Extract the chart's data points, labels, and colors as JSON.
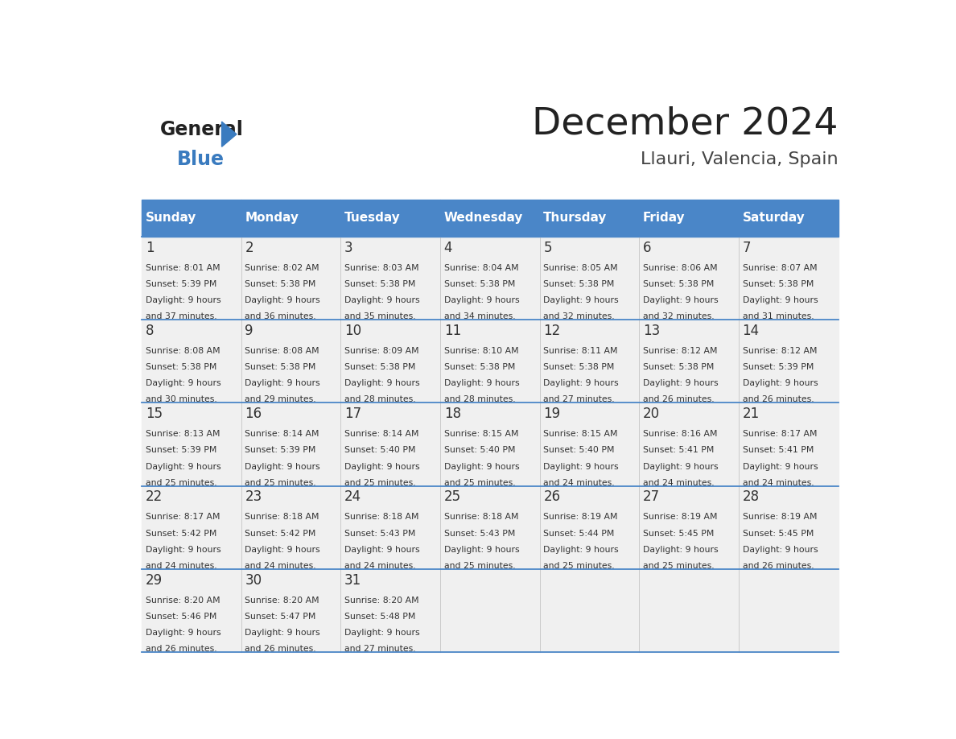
{
  "title": "December 2024",
  "subtitle": "Llauri, Valencia, Spain",
  "header_color": "#4a86c8",
  "header_text_color": "#ffffff",
  "days_of_week": [
    "Sunday",
    "Monday",
    "Tuesday",
    "Wednesday",
    "Thursday",
    "Friday",
    "Saturday"
  ],
  "weeks": [
    [
      {
        "day": 1,
        "sunrise": "8:01 AM",
        "sunset": "5:39 PM",
        "daylight_hours": 9,
        "daylight_minutes": 37
      },
      {
        "day": 2,
        "sunrise": "8:02 AM",
        "sunset": "5:38 PM",
        "daylight_hours": 9,
        "daylight_minutes": 36
      },
      {
        "day": 3,
        "sunrise": "8:03 AM",
        "sunset": "5:38 PM",
        "daylight_hours": 9,
        "daylight_minutes": 35
      },
      {
        "day": 4,
        "sunrise": "8:04 AM",
        "sunset": "5:38 PM",
        "daylight_hours": 9,
        "daylight_minutes": 34
      },
      {
        "day": 5,
        "sunrise": "8:05 AM",
        "sunset": "5:38 PM",
        "daylight_hours": 9,
        "daylight_minutes": 32
      },
      {
        "day": 6,
        "sunrise": "8:06 AM",
        "sunset": "5:38 PM",
        "daylight_hours": 9,
        "daylight_minutes": 32
      },
      {
        "day": 7,
        "sunrise": "8:07 AM",
        "sunset": "5:38 PM",
        "daylight_hours": 9,
        "daylight_minutes": 31
      }
    ],
    [
      {
        "day": 8,
        "sunrise": "8:08 AM",
        "sunset": "5:38 PM",
        "daylight_hours": 9,
        "daylight_minutes": 30
      },
      {
        "day": 9,
        "sunrise": "8:08 AM",
        "sunset": "5:38 PM",
        "daylight_hours": 9,
        "daylight_minutes": 29
      },
      {
        "day": 10,
        "sunrise": "8:09 AM",
        "sunset": "5:38 PM",
        "daylight_hours": 9,
        "daylight_minutes": 28
      },
      {
        "day": 11,
        "sunrise": "8:10 AM",
        "sunset": "5:38 PM",
        "daylight_hours": 9,
        "daylight_minutes": 28
      },
      {
        "day": 12,
        "sunrise": "8:11 AM",
        "sunset": "5:38 PM",
        "daylight_hours": 9,
        "daylight_minutes": 27
      },
      {
        "day": 13,
        "sunrise": "8:12 AM",
        "sunset": "5:38 PM",
        "daylight_hours": 9,
        "daylight_minutes": 26
      },
      {
        "day": 14,
        "sunrise": "8:12 AM",
        "sunset": "5:39 PM",
        "daylight_hours": 9,
        "daylight_minutes": 26
      }
    ],
    [
      {
        "day": 15,
        "sunrise": "8:13 AM",
        "sunset": "5:39 PM",
        "daylight_hours": 9,
        "daylight_minutes": 25
      },
      {
        "day": 16,
        "sunrise": "8:14 AM",
        "sunset": "5:39 PM",
        "daylight_hours": 9,
        "daylight_minutes": 25
      },
      {
        "day": 17,
        "sunrise": "8:14 AM",
        "sunset": "5:40 PM",
        "daylight_hours": 9,
        "daylight_minutes": 25
      },
      {
        "day": 18,
        "sunrise": "8:15 AM",
        "sunset": "5:40 PM",
        "daylight_hours": 9,
        "daylight_minutes": 25
      },
      {
        "day": 19,
        "sunrise": "8:15 AM",
        "sunset": "5:40 PM",
        "daylight_hours": 9,
        "daylight_minutes": 24
      },
      {
        "day": 20,
        "sunrise": "8:16 AM",
        "sunset": "5:41 PM",
        "daylight_hours": 9,
        "daylight_minutes": 24
      },
      {
        "day": 21,
        "sunrise": "8:17 AM",
        "sunset": "5:41 PM",
        "daylight_hours": 9,
        "daylight_minutes": 24
      }
    ],
    [
      {
        "day": 22,
        "sunrise": "8:17 AM",
        "sunset": "5:42 PM",
        "daylight_hours": 9,
        "daylight_minutes": 24
      },
      {
        "day": 23,
        "sunrise": "8:18 AM",
        "sunset": "5:42 PM",
        "daylight_hours": 9,
        "daylight_minutes": 24
      },
      {
        "day": 24,
        "sunrise": "8:18 AM",
        "sunset": "5:43 PM",
        "daylight_hours": 9,
        "daylight_minutes": 24
      },
      {
        "day": 25,
        "sunrise": "8:18 AM",
        "sunset": "5:43 PM",
        "daylight_hours": 9,
        "daylight_minutes": 25
      },
      {
        "day": 26,
        "sunrise": "8:19 AM",
        "sunset": "5:44 PM",
        "daylight_hours": 9,
        "daylight_minutes": 25
      },
      {
        "day": 27,
        "sunrise": "8:19 AM",
        "sunset": "5:45 PM",
        "daylight_hours": 9,
        "daylight_minutes": 25
      },
      {
        "day": 28,
        "sunrise": "8:19 AM",
        "sunset": "5:45 PM",
        "daylight_hours": 9,
        "daylight_minutes": 26
      }
    ],
    [
      {
        "day": 29,
        "sunrise": "8:20 AM",
        "sunset": "5:46 PM",
        "daylight_hours": 9,
        "daylight_minutes": 26
      },
      {
        "day": 30,
        "sunrise": "8:20 AM",
        "sunset": "5:47 PM",
        "daylight_hours": 9,
        "daylight_minutes": 26
      },
      {
        "day": 31,
        "sunrise": "8:20 AM",
        "sunset": "5:48 PM",
        "daylight_hours": 9,
        "daylight_minutes": 27
      },
      null,
      null,
      null,
      null
    ]
  ],
  "cell_bg_color": "#f0f0f0",
  "text_color": "#333333",
  "line_color": "#4a86c8",
  "day_number_font_size": 12,
  "cell_text_font_size": 7.8,
  "header_font_size": 11,
  "logo_general_color": "#222222",
  "logo_blue_color": "#3a7bbf",
  "title_color": "#222222",
  "subtitle_color": "#444444"
}
